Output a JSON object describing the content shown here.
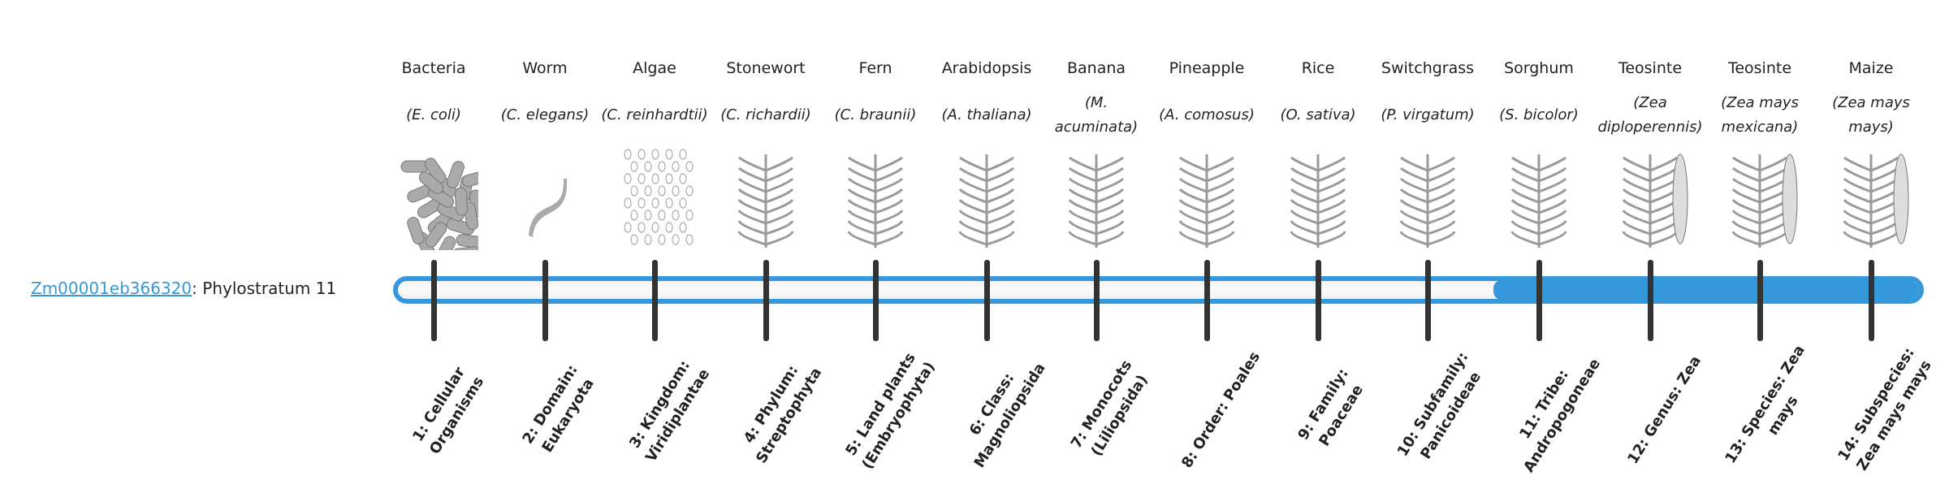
{
  "gene": {
    "id": "Zm00001eb366320",
    "suffix": ": Phylostratum 11"
  },
  "colors": {
    "accent": "#3498db",
    "tick": "#333333"
  },
  "phylostratum_value": 11,
  "total_strata": 14,
  "columns": [
    {
      "common": "Bacteria",
      "scientific": "(E. coli)",
      "image": "bacteria-image",
      "stratum": "1: Cellular Organisms"
    },
    {
      "common": "Worm",
      "scientific": "(C. elegans)",
      "image": "worm-image",
      "stratum": "2: Domain: Eukaryota"
    },
    {
      "common": "Algae",
      "scientific": "(C. reinhardtii)",
      "image": "algae-image",
      "stratum": "3: Kingdom: Viridiplantae"
    },
    {
      "common": "Stonewort",
      "scientific": "(C. richardii)",
      "image": "stonewort-image",
      "stratum": "4: Phylum: Streptophyta"
    },
    {
      "common": "Fern",
      "scientific": "(C. braunii)",
      "image": "fern-image",
      "stratum": "5: Land plants (Embryophyta)"
    },
    {
      "common": "Arabidopsis",
      "scientific": "(A. thaliana)",
      "image": "arabidopsis-image",
      "stratum": "6: Class: Magnoliopsida"
    },
    {
      "common": "Banana",
      "scientific": "(M. acuminata)",
      "image": "banana-image",
      "stratum": "7: Monocots (Liliopsida)"
    },
    {
      "common": "Pineapple",
      "scientific": "(A. comosus)",
      "image": "pineapple-image",
      "stratum": "8: Order: Poales"
    },
    {
      "common": "Rice",
      "scientific": "(O. sativa)",
      "image": "rice-image",
      "stratum": "9: Family: Poaceae"
    },
    {
      "common": "Switchgrass",
      "scientific": "(P. virgatum)",
      "image": "switchgrass-image",
      "stratum": "10: Subfamily: Panicoideae"
    },
    {
      "common": "Sorghum",
      "scientific": "(S. bicolor)",
      "image": "sorghum-image",
      "stratum": "11: Tribe: Andropogoneae"
    },
    {
      "common": "Teosinte",
      "scientific": "(Zea diploperennis)",
      "image": "teosinte-image",
      "stratum": "12: Genus: Zea"
    },
    {
      "common": "Teosinte",
      "scientific": "(Zea mays mexicana)",
      "image": "teosinte-mexicana-image",
      "stratum": "13: Species: Zea mays"
    },
    {
      "common": "Maize",
      "scientific": "(Zea mays mays)",
      "image": "maize-image",
      "stratum": "14: Subspecies: Zea mays mays"
    }
  ]
}
